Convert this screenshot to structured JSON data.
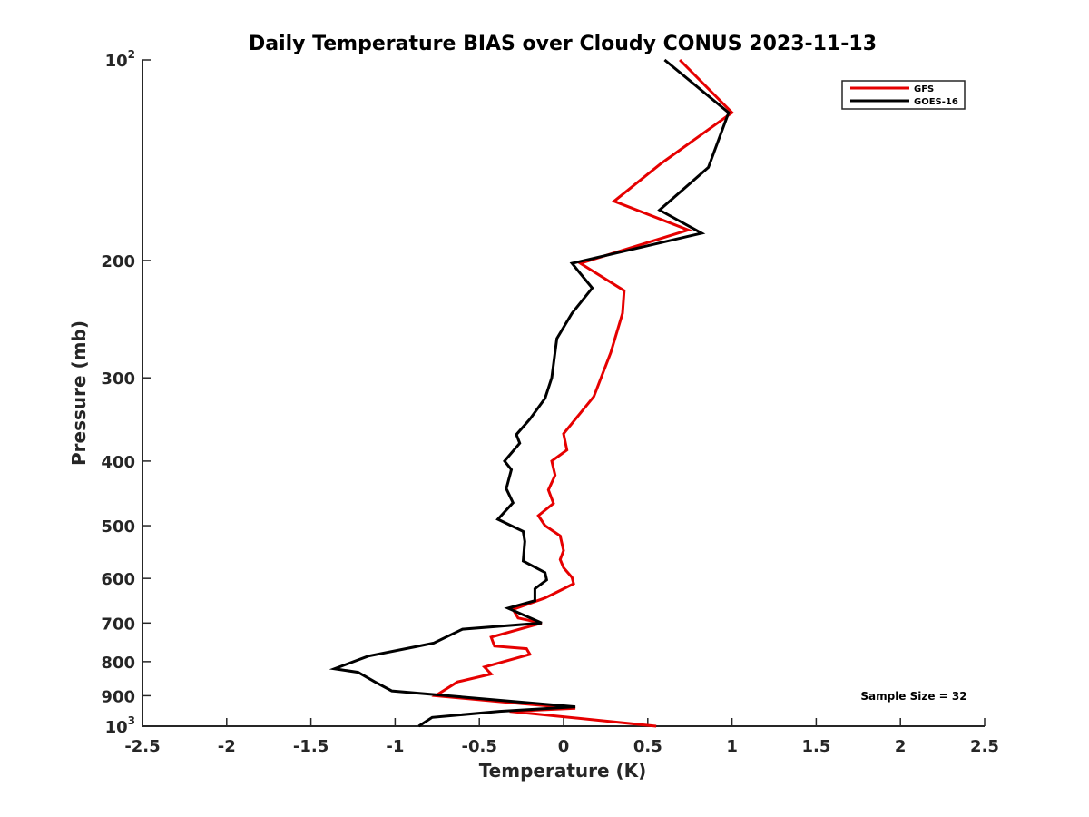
{
  "chart_data": {
    "type": "line",
    "title": "Daily Temperature BIAS over Cloudy CONUS 2023-11-13",
    "xlabel": "Temperature (K)",
    "ylabel": "Pressure (mb)",
    "xlim": [
      -2.5,
      2.5
    ],
    "ylim": [
      100,
      1000
    ],
    "y_scale": "log",
    "y_reversed": true,
    "grid": false,
    "legend_position": "top-right",
    "x_ticks": [
      "-2.5",
      "-2",
      "-1.5",
      "-1",
      "-0.5",
      "0",
      "0.5",
      "1",
      "1.5",
      "2",
      "2.5"
    ],
    "y_ticks": [
      {
        "value": 100,
        "label": "10",
        "sup": "2"
      },
      {
        "value": 200,
        "label": "200"
      },
      {
        "value": 300,
        "label": "300"
      },
      {
        "value": 400,
        "label": "400"
      },
      {
        "value": 500,
        "label": "500"
      },
      {
        "value": 600,
        "label": "600"
      },
      {
        "value": 700,
        "label": "700"
      },
      {
        "value": 800,
        "label": "800"
      },
      {
        "value": 900,
        "label": "900"
      },
      {
        "value": 1000,
        "label": "10",
        "sup": "3"
      }
    ],
    "annotation": "Sample Size = 32",
    "series": [
      {
        "name": "GFS",
        "color": "#e60000",
        "x": [
          0.69,
          1.0,
          0.58,
          0.3,
          0.74,
          0.1,
          0.36,
          0.35,
          0.28,
          0.18,
          0.0,
          0.02,
          -0.07,
          -0.05,
          -0.09,
          -0.06,
          -0.15,
          -0.11,
          -0.02,
          0.0,
          -0.02,
          0.0,
          0.05,
          0.06,
          0.0,
          -0.11,
          -0.3,
          -0.27,
          -0.13,
          -0.43,
          -0.41,
          -0.22,
          -0.2,
          -0.47,
          -0.43,
          -0.63,
          -0.76,
          -0.25,
          0.07,
          -0.32,
          0.55
        ],
        "y": [
          100,
          120,
          143,
          163,
          180,
          202,
          222,
          240,
          275,
          320,
          364,
          385,
          400,
          420,
          442,
          463,
          483,
          500,
          518,
          545,
          562,
          578,
          598,
          611,
          622,
          642,
          668,
          688,
          700,
          735,
          758,
          765,
          780,
          815,
          835,
          858,
          900,
          925,
          940,
          950,
          1000
        ]
      },
      {
        "name": "GOES-16",
        "color": "#000000",
        "x": [
          0.6,
          0.98,
          0.86,
          0.57,
          0.82,
          0.05,
          0.17,
          0.05,
          -0.04,
          -0.07,
          -0.11,
          -0.2,
          -0.28,
          -0.26,
          -0.35,
          -0.31,
          -0.34,
          -0.3,
          -0.39,
          -0.24,
          -0.23,
          -0.24,
          -0.11,
          -0.1,
          -0.17,
          -0.17,
          -0.33,
          -0.13,
          -0.6,
          -0.77,
          -0.88,
          -1.16,
          -1.36,
          -1.22,
          -1.12,
          -1.02,
          0.07,
          -0.38,
          -0.78,
          -0.86
        ],
        "y": [
          100,
          120,
          145,
          168,
          182,
          202,
          220,
          240,
          262,
          300,
          322,
          346,
          365,
          376,
          400,
          412,
          440,
          462,
          489,
          510,
          528,
          565,
          588,
          603,
          622,
          648,
          665,
          700,
          715,
          750,
          760,
          785,
          820,
          830,
          858,
          885,
          935,
          950,
          970,
          1000
        ]
      }
    ]
  }
}
